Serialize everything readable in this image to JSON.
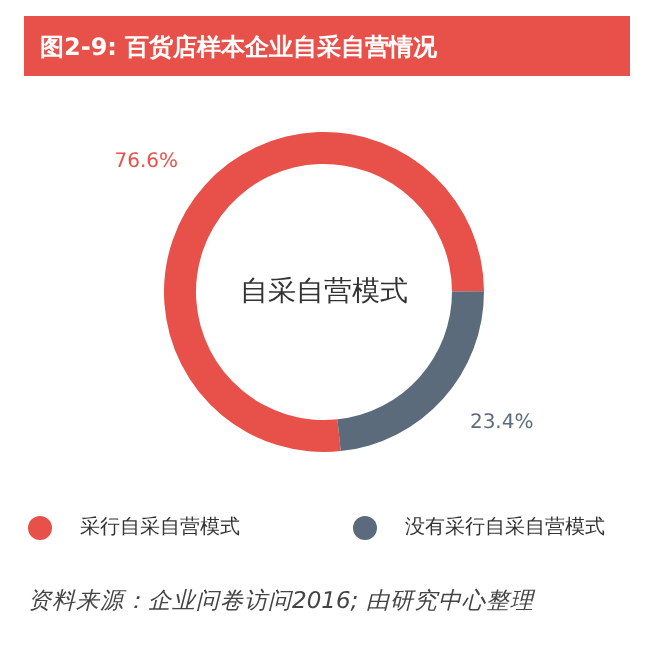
{
  "chart_data": {
    "type": "donut",
    "title": "图2-9: 百货店样本企业自采自营情况",
    "categories": [
      "采行自采自营模式",
      "没有采行自采自营模式"
    ],
    "values": [
      76.6,
      23.4
    ],
    "colors": [
      "#e8504a",
      "#5b6b7c"
    ],
    "value_labels": [
      "76.6%",
      "23.4%"
    ],
    "legend": "bottom",
    "annotations": [
      "自采自营模式",
      "资料来源：企业问卷访问2016; 由研究中心整理"
    ]
  }
}
